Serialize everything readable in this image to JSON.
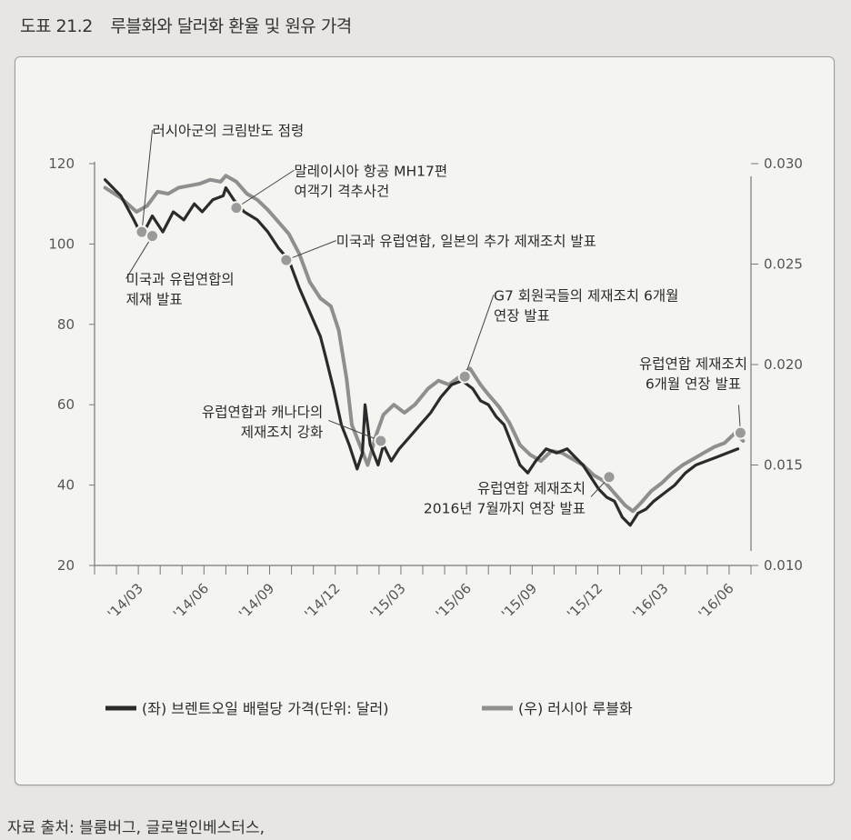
{
  "figure": {
    "number": "도표 21.2",
    "title": "루블화와 달러화 환율 및 원유 가격",
    "source": "자료 출처: 블룸버그, 글로벌인베스터스,"
  },
  "chart_data": {
    "type": "line",
    "title": "루블화와 달러화 환율 및 원유 가격",
    "x_tick_labels": [
      "'14/03",
      "'14/06",
      "'14/09",
      "'14/12",
      "'15/03",
      "'15/06",
      "'15/09",
      "'15/12",
      "'16/03",
      "'16/06"
    ],
    "y_left": {
      "ticks": [
        "120",
        "100",
        "80",
        "60",
        "40",
        "20"
      ],
      "range": [
        20,
        120
      ]
    },
    "y_right": {
      "ticks": [
        "0.030",
        "0.025",
        "0.020",
        "0.015",
        "0.010"
      ],
      "range": [
        0.01,
        0.03
      ]
    },
    "series": [
      {
        "name": "(좌) 브렌트오일 배럴당 가격(단위: 달러)",
        "axis": "left",
        "color": "#2b2b2b",
        "points": [
          [
            2014.04,
            116
          ],
          [
            2014.1,
            112
          ],
          [
            2014.15,
            106
          ],
          [
            2014.18,
            102
          ],
          [
            2014.22,
            107
          ],
          [
            2014.26,
            103
          ],
          [
            2014.3,
            108
          ],
          [
            2014.34,
            106
          ],
          [
            2014.38,
            110
          ],
          [
            2014.41,
            108
          ],
          [
            2014.45,
            111
          ],
          [
            2014.49,
            112
          ],
          [
            2014.5,
            114
          ],
          [
            2014.53,
            111
          ],
          [
            2014.57,
            108
          ],
          [
            2014.62,
            106
          ],
          [
            2014.66,
            103
          ],
          [
            2014.7,
            99
          ],
          [
            2014.74,
            96
          ],
          [
            2014.78,
            89
          ],
          [
            2014.82,
            83
          ],
          [
            2014.86,
            77
          ],
          [
            2014.88,
            72
          ],
          [
            2014.91,
            64
          ],
          [
            2014.94,
            55
          ],
          [
            2014.97,
            50
          ],
          [
            2015.0,
            44
          ],
          [
            2015.02,
            48
          ],
          [
            2015.03,
            60
          ],
          [
            2015.05,
            50
          ],
          [
            2015.08,
            45
          ],
          [
            2015.1,
            50
          ],
          [
            2015.13,
            46
          ],
          [
            2015.16,
            49
          ],
          [
            2015.2,
            52
          ],
          [
            2015.24,
            55
          ],
          [
            2015.28,
            58
          ],
          [
            2015.32,
            62
          ],
          [
            2015.36,
            65
          ],
          [
            2015.4,
            66
          ],
          [
            2015.44,
            64
          ],
          [
            2015.47,
            61
          ],
          [
            2015.5,
            60
          ],
          [
            2015.53,
            57
          ],
          [
            2015.56,
            55
          ],
          [
            2015.59,
            50
          ],
          [
            2015.62,
            45
          ],
          [
            2015.65,
            43
          ],
          [
            2015.68,
            46
          ],
          [
            2015.72,
            49
          ],
          [
            2015.76,
            48
          ],
          [
            2015.8,
            49
          ],
          [
            2015.83,
            47
          ],
          [
            2015.86,
            45
          ],
          [
            2015.89,
            42
          ],
          [
            2015.92,
            39
          ],
          [
            2015.95,
            37
          ],
          [
            2015.98,
            36
          ],
          [
            2016.01,
            32
          ],
          [
            2016.04,
            30
          ],
          [
            2016.07,
            33
          ],
          [
            2016.1,
            34
          ],
          [
            2016.13,
            36
          ],
          [
            2016.17,
            38
          ],
          [
            2016.21,
            40
          ],
          [
            2016.25,
            43
          ],
          [
            2016.29,
            45
          ],
          [
            2016.33,
            46
          ],
          [
            2016.37,
            47
          ],
          [
            2016.41,
            48
          ],
          [
            2016.45,
            49
          ]
        ]
      },
      {
        "name": "(우) 러시아 루블화",
        "axis": "right",
        "color": "#8f8f8f",
        "points": [
          [
            2014.04,
            0.0288
          ],
          [
            2014.1,
            0.0283
          ],
          [
            2014.16,
            0.0276
          ],
          [
            2014.2,
            0.0279
          ],
          [
            2014.24,
            0.0286
          ],
          [
            2014.28,
            0.0285
          ],
          [
            2014.32,
            0.0288
          ],
          [
            2014.36,
            0.0289
          ],
          [
            2014.4,
            0.029
          ],
          [
            2014.44,
            0.0292
          ],
          [
            2014.48,
            0.0291
          ],
          [
            2014.5,
            0.0294
          ],
          [
            2014.54,
            0.0291
          ],
          [
            2014.58,
            0.0285
          ],
          [
            2014.62,
            0.0282
          ],
          [
            2014.66,
            0.0277
          ],
          [
            2014.7,
            0.0271
          ],
          [
            2014.74,
            0.0265
          ],
          [
            2014.78,
            0.0255
          ],
          [
            2014.82,
            0.0241
          ],
          [
            2014.86,
            0.0233
          ],
          [
            2014.9,
            0.0229
          ],
          [
            2014.93,
            0.0217
          ],
          [
            2014.96,
            0.0193
          ],
          [
            2014.98,
            0.017
          ],
          [
            2015.01,
            0.016
          ],
          [
            2015.04,
            0.015
          ],
          [
            2015.07,
            0.0164
          ],
          [
            2015.1,
            0.0175
          ],
          [
            2015.14,
            0.018
          ],
          [
            2015.18,
            0.0176
          ],
          [
            2015.22,
            0.018
          ],
          [
            2015.27,
            0.0188
          ],
          [
            2015.31,
            0.0192
          ],
          [
            2015.35,
            0.019
          ],
          [
            2015.39,
            0.0194
          ],
          [
            2015.43,
            0.0198
          ],
          [
            2015.47,
            0.019
          ],
          [
            2015.5,
            0.0185
          ],
          [
            2015.54,
            0.0179
          ],
          [
            2015.58,
            0.0171
          ],
          [
            2015.62,
            0.016
          ],
          [
            2015.66,
            0.0155
          ],
          [
            2015.7,
            0.0152
          ],
          [
            2015.74,
            0.0157
          ],
          [
            2015.78,
            0.0156
          ],
          [
            2015.82,
            0.0153
          ],
          [
            2015.86,
            0.015
          ],
          [
            2015.9,
            0.0145
          ],
          [
            2015.94,
            0.0142
          ],
          [
            2015.98,
            0.0136
          ],
          [
            2016.02,
            0.013
          ],
          [
            2016.05,
            0.0127
          ],
          [
            2016.08,
            0.0131
          ],
          [
            2016.12,
            0.0137
          ],
          [
            2016.16,
            0.0141
          ],
          [
            2016.2,
            0.0146
          ],
          [
            2016.24,
            0.015
          ],
          [
            2016.28,
            0.0153
          ],
          [
            2016.32,
            0.0156
          ],
          [
            2016.36,
            0.0159
          ],
          [
            2016.4,
            0.0161
          ],
          [
            2016.44,
            0.0166
          ],
          [
            2016.47,
            0.0162
          ]
        ]
      }
    ],
    "annotations": [
      {
        "lines": [
          "러시아군의 크림반도 점령"
        ],
        "x": 2014.18,
        "axis": "left",
        "y": 103,
        "text_pos": [
          2014.22,
          127
        ],
        "anchor": "start"
      },
      {
        "lines": [
          "미국과 유럽연합의",
          "제재 발표"
        ],
        "x": 2014.22,
        "axis": "left",
        "y": 102,
        "text_pos": [
          2014.12,
          90
        ],
        "anchor": "start"
      },
      {
        "lines": [
          "말레이시아 항공 MH17편",
          "여객기 격추사건"
        ],
        "x": 2014.54,
        "axis": "left",
        "y": 109,
        "text_pos": [
          2014.76,
          117
        ],
        "anchor": "start"
      },
      {
        "lines": [
          "미국과 유럽연합, 일본의 추가 제재조치 발표"
        ],
        "x": 2014.73,
        "axis": "left",
        "y": 96,
        "text_pos": [
          2014.92,
          99.5
        ],
        "anchor": "start"
      },
      {
        "lines": [
          "G7 회원국들의 제재조치 6개월",
          "연장 발표"
        ],
        "x": 2015.41,
        "axis": "left",
        "y": 67,
        "text_pos": [
          2015.52,
          86
        ],
        "anchor": "start"
      },
      {
        "lines": [
          "유럽연합과 캐나다의",
          "제재조치 강화"
        ],
        "x": 2015.09,
        "axis": "left",
        "y": 51,
        "text_pos": [
          2014.87,
          57
        ],
        "anchor": "end"
      },
      {
        "lines": [
          "유럽연합 제재조치",
          "2016년 7월까지 연장 발표"
        ],
        "x": 2015.96,
        "axis": "left",
        "y": 42,
        "text_pos": [
          2015.87,
          38
        ],
        "anchor": "end"
      },
      {
        "lines": [
          "유럽연합 제재조치",
          "6개월 연장 발표"
        ],
        "x": 2016.46,
        "axis": "left",
        "y": 53,
        "text_pos": [
          2016.28,
          69
        ],
        "anchor": "middle"
      }
    ],
    "legend": {
      "placement": "bottom"
    }
  }
}
